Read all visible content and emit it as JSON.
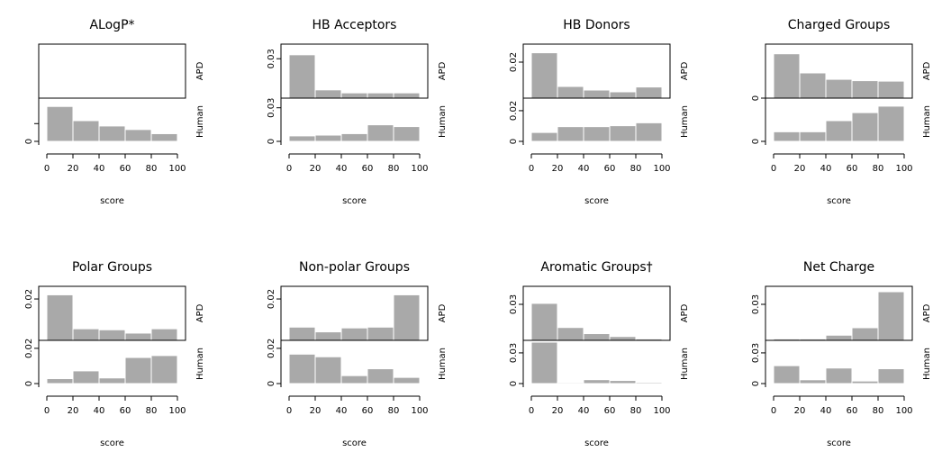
{
  "chart_data": {
    "type": "bar",
    "layout": "2 rows x 4 columns of back-to-back histograms",
    "bar_color": "#a9a9a9",
    "x_label": "score",
    "x_ticks": [
      0,
      20,
      40,
      60,
      80,
      100
    ],
    "x_tick_labels": [
      "0",
      "20",
      "40",
      "60",
      "80",
      "100"
    ],
    "x_range": [
      0,
      100
    ],
    "bins": [
      [
        0,
        20
      ],
      [
        20,
        40
      ],
      [
        40,
        60
      ],
      [
        60,
        80
      ],
      [
        80,
        100
      ]
    ],
    "top_panel_label": "APD",
    "bottom_panel_label": "Human",
    "charts": [
      {
        "title": "ALogP*",
        "apd": [
          0,
          0,
          0,
          0,
          0
        ],
        "human": [
          0.0295,
          0.0175,
          0.013,
          0.01,
          0.0065
        ],
        "apd_max": 0.035,
        "human_max": 0.035,
        "apd_ticks": [],
        "human_ticks": [
          0,
          0.015
        ],
        "apd_tick_labels": [],
        "human_tick_labels": [
          "0",
          ""
        ]
      },
      {
        "title": "HB Acceptors",
        "apd": [
          0.033,
          0.0063,
          0.004,
          0.004,
          0.004
        ],
        "human": [
          0.0049,
          0.0056,
          0.0069,
          0.0148,
          0.0132
        ],
        "apd_max": 0.037,
        "human_max": 0.037,
        "apd_ticks": [
          0.03
        ],
        "human_ticks": [
          0,
          0.03
        ],
        "apd_tick_labels": [
          "0.03"
        ],
        "human_tick_labels": [
          "0",
          "0.03"
        ]
      },
      {
        "title": "HB Donors",
        "apd": [
          0.0252,
          0.0065,
          0.0045,
          0.0035,
          0.0062
        ],
        "human": [
          0.0058,
          0.0096,
          0.0096,
          0.0102,
          0.0121
        ],
        "apd_max": 0.027,
        "human_max": 0.027,
        "apd_ticks": [
          0.02
        ],
        "human_ticks": [
          0,
          0.02
        ],
        "apd_tick_labels": [
          "0.02"
        ],
        "human_tick_labels": [
          "0",
          "0.02"
        ]
      },
      {
        "title": "Charged Groups",
        "apd": [
          0.0292,
          0.0166,
          0.0124,
          0.0115,
          0.0112
        ],
        "human": [
          0.0074,
          0.0074,
          0.016,
          0.0222,
          0.0272
        ],
        "apd_max": 0.032,
        "human_max": 0.032,
        "apd_ticks": [
          0
        ],
        "human_ticks": [
          0
        ],
        "apd_tick_labels": [
          "0"
        ],
        "human_tick_labels": [
          "0"
        ]
      },
      {
        "title": "Polar Groups",
        "apd": [
          0.022,
          0.0056,
          0.0051,
          0.0035,
          0.0056
        ],
        "human": [
          0.0028,
          0.0072,
          0.0032,
          0.0148,
          0.0159
        ],
        "apd_max": 0.0235,
        "human_max": 0.0235,
        "apd_ticks": [
          0.02
        ],
        "human_ticks": [
          0,
          0.02
        ],
        "apd_tick_labels": [
          "0.02"
        ],
        "human_tick_labels": [
          "0",
          "0.02"
        ]
      },
      {
        "title": "Non-polar Groups",
        "apd": [
          0.0064,
          0.0041,
          0.006,
          0.0064,
          0.022
        ],
        "human": [
          0.0167,
          0.0152,
          0.0045,
          0.0084,
          0.0035
        ],
        "apd_max": 0.0235,
        "human_max": 0.0235,
        "apd_ticks": [
          0.02
        ],
        "human_ticks": [
          0,
          0.02
        ],
        "apd_tick_labels": [
          "0.02"
        ],
        "human_tick_labels": [
          "0",
          "0.02"
        ]
      },
      {
        "title": "Aromatic Groups†",
        "apd": [
          0.0308,
          0.0107,
          0.0056,
          0.0032,
          0.0012
        ],
        "human": [
          0.0405,
          0.001,
          0.0038,
          0.003,
          0.0012
        ],
        "apd_max": 0.0405,
        "human_max": 0.0405,
        "apd_ticks": [
          0.03
        ],
        "human_ticks": [
          0,
          0.03
        ],
        "apd_tick_labels": [
          "0.03"
        ],
        "human_tick_labels": [
          "0",
          "0.03"
        ]
      },
      {
        "title": "Net Charge",
        "apd": [
          0.0012,
          0.0012,
          0.0043,
          0.0105,
          0.0405
        ],
        "human": [
          0.0175,
          0.0037,
          0.0152,
          0.0025,
          0.0145
        ],
        "apd_max": 0.0405,
        "human_max": 0.0405,
        "apd_ticks": [
          0.03
        ],
        "human_ticks": [
          0,
          0.03
        ],
        "apd_tick_labels": [
          "0.03"
        ],
        "human_tick_labels": [
          "0",
          "0.03"
        ]
      }
    ]
  }
}
